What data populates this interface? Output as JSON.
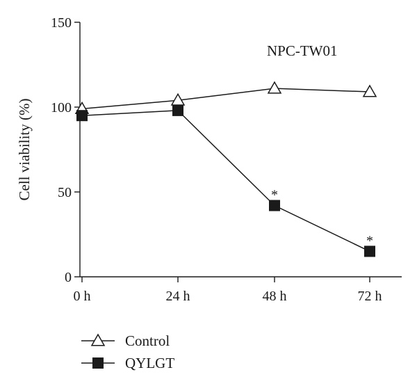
{
  "chart_data": {
    "type": "line",
    "categories": [
      "0 h",
      "24 h",
      "48 h",
      "72 h"
    ],
    "ylabel": "Cell viability (%)",
    "ylim": [
      0,
      150
    ],
    "yticks": [
      0,
      50,
      100,
      150
    ],
    "grid": false,
    "legend_position": "bottom-left",
    "annotation": "NPC-TW01",
    "series": [
      {
        "name": "Control",
        "marker": "open-triangle",
        "values": [
          99,
          104,
          111,
          109
        ],
        "significance": [
          "",
          "",
          "",
          ""
        ]
      },
      {
        "name": "QYLGT",
        "marker": "filled-square",
        "values": [
          95,
          98,
          42,
          15
        ],
        "significance": [
          "",
          "",
          "*",
          "*"
        ]
      }
    ]
  }
}
